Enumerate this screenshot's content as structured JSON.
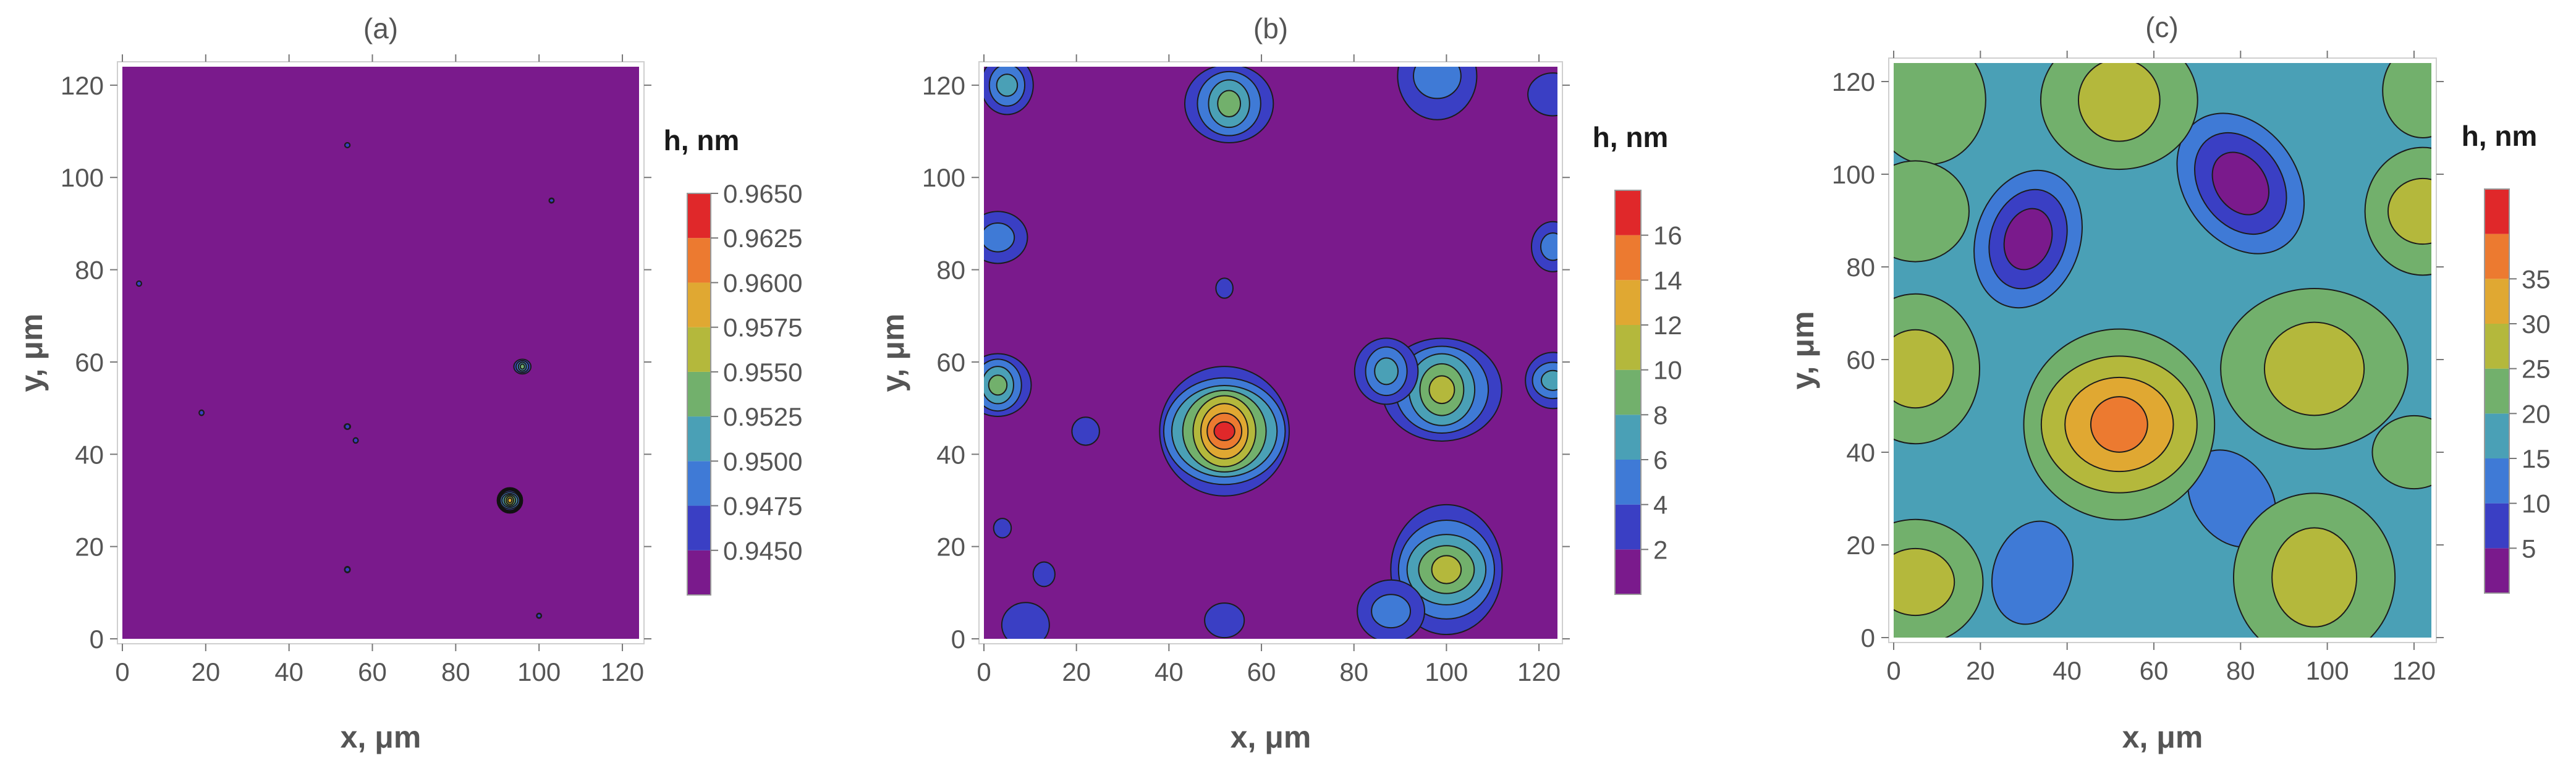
{
  "chart_data": [
    {
      "type": "heatmap",
      "title": "(a)",
      "xlabel": "x, μm",
      "ylabel": "y, μm",
      "xlim": [
        0,
        124
      ],
      "ylim": [
        0,
        124
      ],
      "xticks": [
        0,
        20,
        40,
        60,
        80,
        100,
        120
      ],
      "yticks": [
        0,
        20,
        40,
        60,
        80,
        100,
        120
      ],
      "colorbar": {
        "title": "h, nm",
        "levels": [
          0.945,
          0.9475,
          0.95,
          0.9525,
          0.955,
          0.9575,
          0.96,
          0.9625,
          0.965
        ],
        "tick_labels": [
          "0.9450",
          "0.9475",
          "0.9500",
          "0.9525",
          "0.9550",
          "0.9575",
          "0.9600",
          "0.9625",
          "0.9650"
        ],
        "colors": [
          "#7a1a8c",
          "#3a3fc4",
          "#3f7ad6",
          "#4aa0b6",
          "#72b06c",
          "#b4b83c",
          "#e0a832",
          "#ec7a30",
          "#e0282a"
        ]
      },
      "background_color": "#7a1a8c",
      "features": [
        {
          "x": 93,
          "y": 30,
          "r": 2.6,
          "peak": 0.9575
        },
        {
          "x": 96,
          "y": 59,
          "r": 1.9,
          "peak": 0.9525
        },
        {
          "x": 4,
          "y": 77,
          "r": 0.6,
          "peak": 0.945
        },
        {
          "x": 19,
          "y": 49,
          "r": 0.6,
          "peak": 0.945
        },
        {
          "x": 54,
          "y": 107,
          "r": 0.6,
          "peak": 0.945
        },
        {
          "x": 54,
          "y": 46,
          "r": 0.7,
          "peak": 0.945
        },
        {
          "x": 56,
          "y": 43,
          "r": 0.6,
          "peak": 0.945
        },
        {
          "x": 54,
          "y": 15,
          "r": 0.7,
          "peak": 0.945
        },
        {
          "x": 103,
          "y": 95,
          "r": 0.5,
          "peak": 0.945
        },
        {
          "x": 100,
          "y": 5,
          "r": 0.5,
          "peak": 0.945
        }
      ]
    },
    {
      "type": "heatmap",
      "title": "(b)",
      "xlabel": "x, μm",
      "ylabel": "y, μm",
      "xlim": [
        0,
        124
      ],
      "ylim": [
        0,
        124
      ],
      "xticks": [
        0,
        20,
        40,
        60,
        80,
        100,
        120
      ],
      "yticks": [
        0,
        20,
        40,
        60,
        80,
        100,
        120
      ],
      "colorbar": {
        "title": "h, nm",
        "levels": [
          2,
          4,
          6,
          8,
          10,
          12,
          14,
          16
        ],
        "tick_labels": [
          "2",
          "4",
          "6",
          "8",
          "10",
          "12",
          "14",
          "16"
        ],
        "colors": [
          "#7a1a8c",
          "#3a3fc4",
          "#3f7ad6",
          "#4aa0b6",
          "#72b06c",
          "#b4b83c",
          "#e0a832",
          "#ec7a30",
          "#e0282a"
        ]
      },
      "background_color": "#7a1a8c",
      "features": [
        {
          "x": 52,
          "y": 45,
          "r": 14,
          "peak": 17
        },
        {
          "x": 99,
          "y": 54,
          "r": 12,
          "peak": 10
        },
        {
          "x": 87,
          "y": 58,
          "r": 7,
          "peak": 7
        },
        {
          "x": 100,
          "y": 15,
          "r": 13,
          "peak": 11
        },
        {
          "x": 88,
          "y": 6,
          "r": 7,
          "peak": 5
        },
        {
          "x": 53,
          "y": 116,
          "r": 9,
          "peak": 8
        },
        {
          "x": 5,
          "y": 120,
          "r": 6,
          "peak": 6
        },
        {
          "x": 98,
          "y": 122,
          "r": 9,
          "peak": 5
        },
        {
          "x": 3,
          "y": 87,
          "r": 6,
          "peak": 5
        },
        {
          "x": 3,
          "y": 55,
          "r": 7,
          "peak": 8
        },
        {
          "x": 123,
          "y": 85,
          "r": 5,
          "peak": 4
        },
        {
          "x": 123,
          "y": 56,
          "r": 6,
          "peak": 6
        },
        {
          "x": 123,
          "y": 118,
          "r": 5,
          "peak": 3
        },
        {
          "x": 22,
          "y": 45,
          "r": 3,
          "peak": 2
        },
        {
          "x": 52,
          "y": 76,
          "r": 2,
          "peak": 2
        },
        {
          "x": 9,
          "y": 3,
          "r": 5,
          "peak": 2
        },
        {
          "x": 52,
          "y": 4,
          "r": 4,
          "peak": 2
        },
        {
          "x": 4,
          "y": 24,
          "r": 2,
          "peak": 2
        },
        {
          "x": 13,
          "y": 14,
          "r": 2.5,
          "peak": 2
        }
      ]
    },
    {
      "type": "heatmap",
      "title": "(c)",
      "xlabel": "x, μm",
      "ylabel": "y, μm",
      "xlim": [
        0,
        124
      ],
      "ylim": [
        0,
        124
      ],
      "xticks": [
        0,
        20,
        40,
        60,
        80,
        100,
        120
      ],
      "yticks": [
        0,
        20,
        40,
        60,
        80,
        100,
        120
      ],
      "colorbar": {
        "title": "h, nm",
        "levels": [
          5,
          10,
          15,
          20,
          25,
          30,
          35
        ],
        "tick_labels": [
          "5",
          "10",
          "15",
          "20",
          "25",
          "30",
          "35"
        ],
        "colors": [
          "#7a1a8c",
          "#3a3fc4",
          "#3f7ad6",
          "#4aa0b6",
          "#72b06c",
          "#b4b83c",
          "#e0a832",
          "#ec7a30",
          "#e0282a"
        ]
      },
      "background_color": "#4aa0b6",
      "peaks": [
        {
          "x": 52,
          "y": 46,
          "r": 22,
          "peak": 38
        },
        {
          "x": 97,
          "y": 58,
          "r": 20,
          "peak": 29
        },
        {
          "x": 97,
          "y": 13,
          "r": 19,
          "peak": 29
        },
        {
          "x": 5,
          "y": 58,
          "r": 16,
          "peak": 28
        },
        {
          "x": 5,
          "y": 12,
          "r": 15,
          "peak": 25
        },
        {
          "x": 52,
          "y": 116,
          "r": 17,
          "peak": 25
        },
        {
          "x": 8,
          "y": 116,
          "r": 14,
          "peak": 24
        },
        {
          "x": 122,
          "y": 92,
          "r": 14,
          "peak": 26
        },
        {
          "x": 120,
          "y": 40,
          "r": 9,
          "peak": 23
        },
        {
          "x": 5,
          "y": 92,
          "r": 12,
          "peak": 24
        },
        {
          "x": 122,
          "y": 118,
          "r": 10,
          "peak": 22
        }
      ],
      "valleys": [
        {
          "x": 31,
          "y": 86,
          "r": 12,
          "depth": 4
        },
        {
          "x": 80,
          "y": 98,
          "r": 13,
          "depth": 4
        },
        {
          "x": 32,
          "y": 14,
          "r": 9,
          "depth": 10
        },
        {
          "x": 78,
          "y": 30,
          "r": 9,
          "depth": 11
        }
      ]
    }
  ]
}
